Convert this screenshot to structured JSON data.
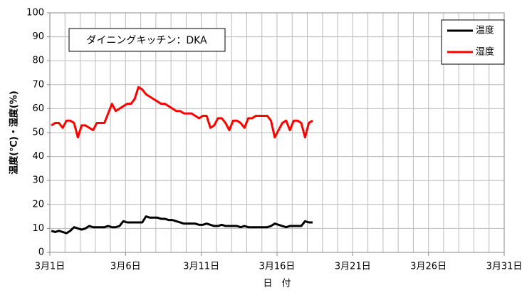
{
  "chart_data": {
    "type": "line",
    "annotation": "ダイニングキッチン：DKA",
    "xlabel": "日　付",
    "ylabel": "温度(℃)・湿度(%)",
    "xlim": [
      1,
      31
    ],
    "ylim": [
      0,
      100
    ],
    "yticks": [
      0,
      10,
      20,
      30,
      40,
      50,
      60,
      70,
      80,
      90,
      100
    ],
    "xticks": [
      {
        "value": 1,
        "label": "3月1日"
      },
      {
        "value": 6,
        "label": "3月6日"
      },
      {
        "value": 11,
        "label": "3月11日"
      },
      {
        "value": 16,
        "label": "3月16日"
      },
      {
        "value": 21,
        "label": "3月21日"
      },
      {
        "value": 26,
        "label": "3月26日"
      },
      {
        "value": 31,
        "label": "3月31日"
      }
    ],
    "xgrid": [
      1,
      2,
      3,
      4,
      5,
      6,
      7,
      8,
      9,
      10,
      11,
      12,
      13,
      14,
      15,
      16,
      17,
      18,
      19,
      20,
      21,
      22,
      23,
      24,
      25,
      26,
      27,
      28,
      29,
      30,
      31
    ],
    "grid": true,
    "legend": "upper right",
    "x": [
      1.1,
      1.35,
      1.6,
      1.85,
      2.1,
      2.35,
      2.6,
      2.85,
      3.1,
      3.35,
      3.6,
      3.85,
      4.1,
      4.35,
      4.6,
      4.85,
      5.1,
      5.35,
      5.6,
      5.85,
      6.1,
      6.35,
      6.6,
      6.85,
      7.1,
      7.35,
      7.6,
      7.85,
      8.1,
      8.35,
      8.6,
      8.85,
      9.1,
      9.35,
      9.6,
      9.85,
      10.1,
      10.35,
      10.6,
      10.85,
      11.1,
      11.35,
      11.6,
      11.85,
      12.1,
      12.35,
      12.6,
      12.85,
      13.1,
      13.35,
      13.6,
      13.85,
      14.1,
      14.35,
      14.6,
      14.85,
      15.1,
      15.35,
      15.6,
      15.85,
      16.1,
      16.35,
      16.6,
      16.85,
      17.1,
      17.35,
      17.6,
      17.85,
      18.1,
      18.35
    ],
    "series": [
      {
        "name": "温度",
        "color": "#000000",
        "values": [
          9,
          8.5,
          9,
          8.5,
          8,
          9,
          10.5,
          10,
          9.5,
          10,
          11,
          10.5,
          10.5,
          10.5,
          10.5,
          11,
          10.5,
          10.5,
          11,
          13,
          12.5,
          12.5,
          12.5,
          12.5,
          12.5,
          15,
          14.5,
          14.5,
          14.5,
          14,
          14,
          13.5,
          13.5,
          13,
          12.5,
          12,
          12,
          12,
          12,
          11.5,
          11.5,
          12,
          11.5,
          11,
          11,
          11.5,
          11,
          11,
          11,
          11,
          10.5,
          11,
          10.5,
          10.5,
          10.5,
          10.5,
          10.5,
          10.5,
          11,
          12,
          11.5,
          11,
          10.5,
          11,
          11,
          11,
          11,
          13,
          12.5,
          12.5
        ]
      },
      {
        "name": "湿度",
        "color": "#ff0000",
        "values": [
          53,
          54,
          54,
          52,
          55,
          55,
          54,
          48,
          53,
          53,
          52,
          51,
          54,
          54,
          54,
          58,
          62,
          59,
          60,
          61,
          62,
          62,
          64,
          69,
          68,
          66,
          65,
          64,
          63,
          62,
          62,
          61,
          60,
          59,
          59,
          58,
          58,
          58,
          57,
          56,
          57,
          57,
          52,
          53,
          56,
          56,
          54,
          51,
          55,
          55,
          54,
          52,
          56,
          56,
          57,
          57,
          57,
          57,
          55,
          48,
          51,
          54,
          55,
          51,
          55,
          55,
          54,
          48,
          54,
          55
        ]
      }
    ]
  }
}
